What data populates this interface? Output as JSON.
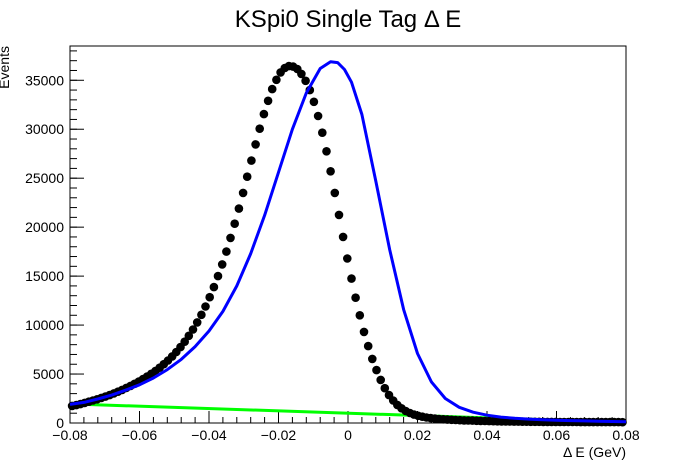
{
  "chart_data": {
    "type": "scatter",
    "title": "KSpi0 Single Tag Δ E",
    "xlabel": "Δ E (GeV)",
    "ylabel": "Events",
    "xlim": [
      -0.08,
      0.08
    ],
    "ylim": [
      0,
      38500
    ],
    "x_ticks": [
      -0.08,
      -0.06,
      -0.04,
      -0.02,
      0,
      0.02,
      0.04,
      0.06,
      0.08
    ],
    "x_tick_labels": [
      "−0.08",
      "−0.06",
      "−0.04",
      "−0.02",
      "0",
      "0.02",
      "0.04",
      "0.06",
      "0.08"
    ],
    "y_ticks": [
      0,
      5000,
      10000,
      15000,
      20000,
      25000,
      30000,
      35000
    ],
    "y_tick_labels": [
      "0",
      "5000",
      "10000",
      "15000",
      "20000",
      "25000",
      "30000",
      "35000"
    ],
    "grid": false,
    "colors": {
      "data": "#000000",
      "fit": "#0000ff",
      "background": "#00ff00"
    },
    "series": [
      {
        "kind": "points",
        "x": [
          -0.0794,
          -0.0782,
          -0.077,
          -0.0758,
          -0.0746,
          -0.0734,
          -0.0722,
          -0.071,
          -0.0698,
          -0.0686,
          -0.0674,
          -0.0662,
          -0.065,
          -0.0638,
          -0.0626,
          -0.0614,
          -0.0602,
          -0.059,
          -0.0578,
          -0.0566,
          -0.0554,
          -0.0542,
          -0.053,
          -0.0518,
          -0.0506,
          -0.0494,
          -0.0482,
          -0.047,
          -0.0458,
          -0.0446,
          -0.0434,
          -0.0422,
          -0.041,
          -0.0398,
          -0.0386,
          -0.0374,
          -0.0362,
          -0.035,
          -0.0338,
          -0.0326,
          -0.0314,
          -0.0302,
          -0.029,
          -0.0278,
          -0.0266,
          -0.0254,
          -0.0242,
          -0.023,
          -0.0218,
          -0.0206,
          -0.0194,
          -0.0182,
          -0.017,
          -0.0158,
          -0.0146,
          -0.0134,
          -0.0122,
          -0.011,
          -0.0098,
          -0.0086,
          -0.0074,
          -0.0062,
          -0.005,
          -0.0038,
          -0.0026,
          -0.0014,
          -0.0002,
          0.001,
          0.0022,
          0.0034,
          0.0046,
          0.0058,
          0.007,
          0.0082,
          0.0094,
          0.0106,
          0.0118,
          0.013,
          0.0142,
          0.0154,
          0.0166,
          0.0178,
          0.019,
          0.0202,
          0.0214,
          0.0226,
          0.0238,
          0.025,
          0.0262,
          0.0274,
          0.0286,
          0.0298,
          0.031,
          0.0322,
          0.0334,
          0.0346,
          0.0358,
          0.037,
          0.0382,
          0.0394,
          0.0406,
          0.0418,
          0.043,
          0.0442,
          0.0454,
          0.0466,
          0.0478,
          0.049,
          0.0502,
          0.0514,
          0.0526,
          0.0538,
          0.055,
          0.0562,
          0.0574,
          0.0586,
          0.0598,
          0.061,
          0.0622,
          0.0634,
          0.0646,
          0.0658,
          0.067,
          0.0682,
          0.0694,
          0.0706,
          0.0718,
          0.073,
          0.0742,
          0.0754,
          0.0766,
          0.0778,
          0.079
        ],
        "y": [
          1750,
          1830,
          1930,
          2050,
          2180,
          2300,
          2420,
          2560,
          2700,
          2850,
          3020,
          3200,
          3380,
          3580,
          3790,
          4000,
          4230,
          4480,
          4740,
          5020,
          5320,
          5650,
          6000,
          6380,
          6800,
          7250,
          7750,
          8300,
          8900,
          9550,
          10270,
          11050,
          11900,
          12850,
          13880,
          15000,
          16200,
          17500,
          18900,
          20350,
          21900,
          23500,
          25150,
          26800,
          28450,
          30050,
          31550,
          32900,
          34100,
          35050,
          35800,
          36250,
          36450,
          36400,
          36150,
          35650,
          34950,
          34000,
          32800,
          31350,
          29650,
          27750,
          25700,
          23500,
          21250,
          19000,
          16800,
          14750,
          12800,
          11000,
          9300,
          7850,
          6550,
          5400,
          4400,
          3550,
          2850,
          2300,
          1850,
          1500,
          1230,
          1020,
          860,
          740,
          640,
          560,
          500,
          450,
          410,
          380,
          350,
          330,
          310,
          290,
          270,
          255,
          240,
          225,
          210,
          200,
          190,
          180,
          172,
          165,
          158,
          150,
          145,
          140,
          135,
          130,
          126,
          122,
          118,
          115,
          112,
          110,
          108,
          106,
          104,
          102,
          100,
          98,
          96,
          95,
          94,
          93,
          92,
          91,
          90,
          89,
          88,
          87,
          86
        ]
      },
      {
        "kind": "fit-curve",
        "x": [
          -0.08,
          -0.076,
          -0.072,
          -0.068,
          -0.064,
          -0.06,
          -0.056,
          -0.052,
          -0.048,
          -0.044,
          -0.04,
          -0.036,
          -0.032,
          -0.028,
          -0.024,
          -0.02,
          -0.016,
          -0.012,
          -0.008,
          -0.005,
          -0.003,
          -0.001,
          0.001,
          0.004,
          0.008,
          0.012,
          0.016,
          0.02,
          0.024,
          0.028,
          0.032,
          0.036,
          0.04,
          0.044,
          0.048,
          0.052,
          0.056,
          0.06,
          0.064,
          0.068,
          0.072,
          0.076,
          0.08
        ],
        "y": [
          1900,
          2100,
          2450,
          2850,
          3350,
          3900,
          4600,
          5450,
          6500,
          7800,
          9400,
          11400,
          14000,
          17300,
          21200,
          25600,
          30000,
          33700,
          36200,
          36900,
          36800,
          36100,
          34800,
          31500,
          24700,
          17700,
          11600,
          7100,
          4200,
          2500,
          1600,
          1100,
          800,
          600,
          480,
          400,
          340,
          290,
          250,
          210,
          180,
          150,
          120
        ]
      },
      {
        "kind": "background-line",
        "x": [
          -0.08,
          0.08
        ],
        "y": [
          1950,
          50
        ]
      }
    ]
  }
}
